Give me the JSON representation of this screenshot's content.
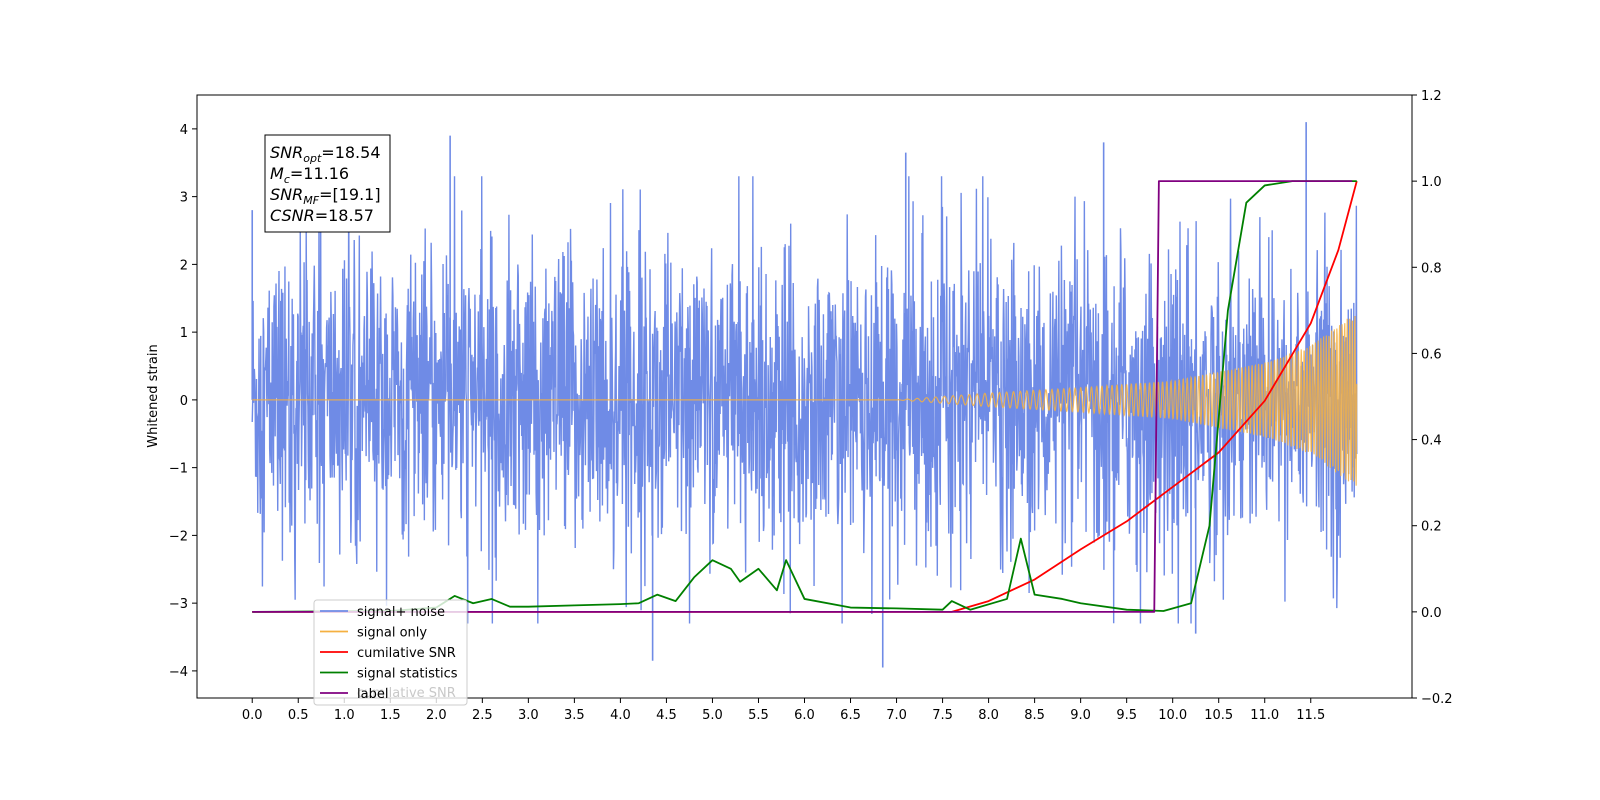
{
  "chart_data": {
    "type": "line",
    "ylabel_left": "Whitened strain",
    "ylim_left": [
      -4.4,
      4.5
    ],
    "ylim_right": [
      -0.2,
      1.2
    ],
    "xlim": [
      -0.6,
      12.6
    ],
    "x_ticks": [
      0.0,
      0.5,
      1.0,
      1.5,
      2.0,
      2.5,
      3.0,
      3.5,
      4.0,
      4.5,
      5.0,
      5.5,
      6.0,
      6.5,
      7.0,
      7.5,
      8.0,
      8.5,
      9.0,
      9.5,
      10.0,
      10.5,
      11.0,
      11.5
    ],
    "x_tick_labels": [
      "0.0",
      "0.5",
      "1.0",
      "1.5",
      "2.0",
      "2.5",
      "3.0",
      "3.5",
      "4.0",
      "4.5",
      "5.0",
      "5.5",
      "6.0",
      "6.5",
      "7.0",
      "7.5",
      "8.0",
      "8.5",
      "9.0",
      "9.5",
      "10.0",
      "10.5",
      "11.0",
      "11.5"
    ],
    "y_left_ticks": [
      -4,
      -3,
      -2,
      -1,
      0,
      1,
      2,
      3,
      4
    ],
    "y_left_tick_labels": [
      "−4",
      "−3",
      "−2",
      "−1",
      "0",
      "1",
      "2",
      "3",
      "4"
    ],
    "y_right_ticks": [
      -0.2,
      0.0,
      0.2,
      0.4,
      0.6,
      0.8,
      1.0,
      1.2
    ],
    "y_right_tick_labels": [
      "−0.2",
      "0.0",
      "0.2",
      "0.4",
      "0.6",
      "0.8",
      "1.0",
      "1.2"
    ],
    "grid": false,
    "legend_placement": "lower-left",
    "series": [
      {
        "name": "signal+ noise",
        "axis": "left",
        "color": "#6f8be6",
        "style": "dense noisy trace, roughly ±1.3 sigma band with spikes between about -3.9 and 4.1",
        "x_range": [
          0.0,
          12.0
        ],
        "extremes": [
          {
            "x": 0.0,
            "y": 2.8
          },
          {
            "x": 2.15,
            "y": 3.9
          },
          {
            "x": 4.35,
            "y": -3.85
          },
          {
            "x": 6.85,
            "y": -3.95
          },
          {
            "x": 7.1,
            "y": 3.65
          },
          {
            "x": 9.25,
            "y": 3.8
          },
          {
            "x": 10.25,
            "y": -3.45
          },
          {
            "x": 11.45,
            "y": 4.1
          }
        ]
      },
      {
        "name": "signal only",
        "axis": "left",
        "color": "#f5b041",
        "style": "chirp oscillation, amplitude grows toward the end",
        "amplitude_envelope": [
          {
            "x": 0.0,
            "y": 0.0
          },
          {
            "x": 7.0,
            "y": 0.0
          },
          {
            "x": 8.0,
            "y": 0.1
          },
          {
            "x": 9.0,
            "y": 0.18
          },
          {
            "x": 10.0,
            "y": 0.28
          },
          {
            "x": 11.0,
            "y": 0.55
          },
          {
            "x": 11.5,
            "y": 0.8
          },
          {
            "x": 12.0,
            "y": 1.3
          }
        ]
      },
      {
        "name": "cumilative SNR",
        "axis": "right",
        "color": "#ff0000",
        "points": [
          {
            "x": 0.0,
            "y": 0.0
          },
          {
            "x": 7.6,
            "y": 0.0
          },
          {
            "x": 8.0,
            "y": 0.025
          },
          {
            "x": 8.5,
            "y": 0.075
          },
          {
            "x": 9.0,
            "y": 0.145
          },
          {
            "x": 9.5,
            "y": 0.21
          },
          {
            "x": 10.0,
            "y": 0.29
          },
          {
            "x": 10.5,
            "y": 0.37
          },
          {
            "x": 11.0,
            "y": 0.49
          },
          {
            "x": 11.5,
            "y": 0.67
          },
          {
            "x": 11.8,
            "y": 0.84
          },
          {
            "x": 12.0,
            "y": 1.0
          }
        ]
      },
      {
        "name": "signal statistics",
        "axis": "right",
        "color": "#008000",
        "points": [
          {
            "x": 0.0,
            "y": 0.0
          },
          {
            "x": 1.5,
            "y": 0.002
          },
          {
            "x": 2.0,
            "y": 0.01
          },
          {
            "x": 2.2,
            "y": 0.037
          },
          {
            "x": 2.4,
            "y": 0.02
          },
          {
            "x": 2.6,
            "y": 0.03
          },
          {
            "x": 2.8,
            "y": 0.012
          },
          {
            "x": 3.0,
            "y": 0.012
          },
          {
            "x": 3.5,
            "y": 0.015
          },
          {
            "x": 4.0,
            "y": 0.018
          },
          {
            "x": 4.2,
            "y": 0.02
          },
          {
            "x": 4.4,
            "y": 0.04
          },
          {
            "x": 4.6,
            "y": 0.025
          },
          {
            "x": 4.8,
            "y": 0.08
          },
          {
            "x": 5.0,
            "y": 0.12
          },
          {
            "x": 5.2,
            "y": 0.1
          },
          {
            "x": 5.3,
            "y": 0.07
          },
          {
            "x": 5.5,
            "y": 0.1
          },
          {
            "x": 5.7,
            "y": 0.05
          },
          {
            "x": 5.8,
            "y": 0.12
          },
          {
            "x": 6.0,
            "y": 0.03
          },
          {
            "x": 6.5,
            "y": 0.01
          },
          {
            "x": 7.0,
            "y": 0.008
          },
          {
            "x": 7.5,
            "y": 0.005
          },
          {
            "x": 7.6,
            "y": 0.025
          },
          {
            "x": 7.8,
            "y": 0.005
          },
          {
            "x": 8.2,
            "y": 0.03
          },
          {
            "x": 8.35,
            "y": 0.17
          },
          {
            "x": 8.5,
            "y": 0.04
          },
          {
            "x": 8.8,
            "y": 0.03
          },
          {
            "x": 9.0,
            "y": 0.02
          },
          {
            "x": 9.5,
            "y": 0.005
          },
          {
            "x": 9.9,
            "y": 0.002
          },
          {
            "x": 10.2,
            "y": 0.02
          },
          {
            "x": 10.4,
            "y": 0.2
          },
          {
            "x": 10.6,
            "y": 0.7
          },
          {
            "x": 10.8,
            "y": 0.95
          },
          {
            "x": 11.0,
            "y": 0.99
          },
          {
            "x": 11.3,
            "y": 1.0
          },
          {
            "x": 12.0,
            "y": 1.0
          }
        ]
      },
      {
        "name": "label",
        "axis": "right",
        "color": "#800080",
        "points": [
          {
            "x": 0.0,
            "y": 0.0
          },
          {
            "x": 9.8,
            "y": 0.0
          },
          {
            "x": 9.85,
            "y": 1.0
          },
          {
            "x": 11.95,
            "y": 1.0
          }
        ]
      }
    ],
    "legend_entries": [
      "signal+ noise",
      "signal only",
      "cumilative SNR",
      "signal statistics",
      "label"
    ],
    "legend_ghost_text": "cumilative SNR",
    "info_box": [
      {
        "main": "SNR",
        "sub": "opt",
        "rest": "=18.54"
      },
      {
        "main": "M",
        "sub": "c",
        "rest": "=11.16"
      },
      {
        "main": "SNR",
        "sub": "MF",
        "rest": "=[19.1]"
      },
      {
        "main": "CSNR",
        "sub": "",
        "rest": "=18.57"
      }
    ]
  }
}
